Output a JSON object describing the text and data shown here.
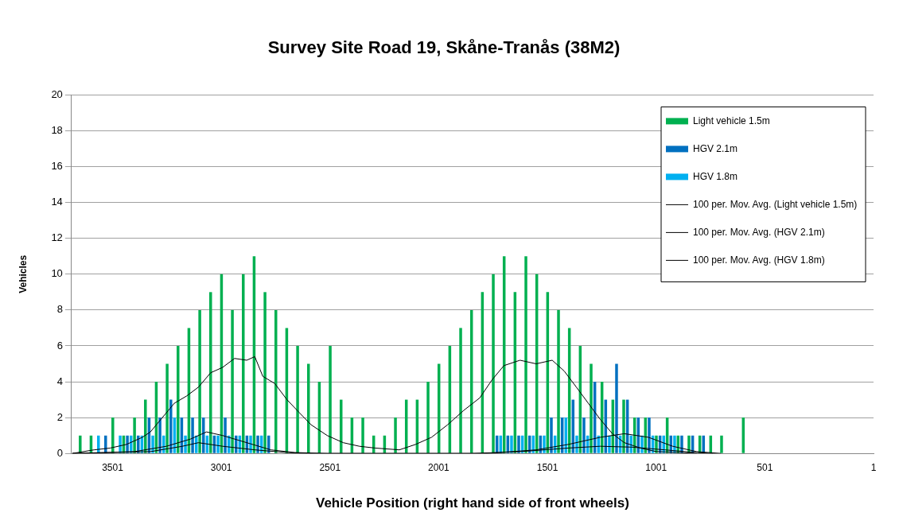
{
  "chart_data": {
    "type": "bar",
    "title": "Survey Site Road 19, Skåne-Tranås (38M2)",
    "xlabel": "Vehicle Position (right hand side of front wheels)",
    "ylabel": "Vehicles",
    "x": [
      3650,
      3600,
      3550,
      3500,
      3450,
      3400,
      3350,
      3300,
      3250,
      3200,
      3150,
      3100,
      3050,
      3000,
      2950,
      2900,
      2850,
      2800,
      2750,
      2700,
      2650,
      2600,
      2550,
      2500,
      2450,
      2400,
      2350,
      2300,
      2250,
      2200,
      2150,
      2100,
      2050,
      2000,
      1950,
      1900,
      1850,
      1800,
      1750,
      1700,
      1650,
      1600,
      1550,
      1500,
      1450,
      1400,
      1350,
      1300,
      1250,
      1200,
      1150,
      1100,
      1050,
      1000,
      950,
      900,
      850,
      800,
      750,
      700,
      650,
      600
    ],
    "series": [
      {
        "name": "Light vehicle 1.5m",
        "color": "#00b050",
        "values": [
          1,
          1,
          0,
          2,
          1,
          2,
          3,
          4,
          5,
          6,
          7,
          8,
          9,
          10,
          8,
          10,
          11,
          9,
          8,
          7,
          6,
          5,
          4,
          6,
          3,
          2,
          2,
          1,
          1,
          2,
          3,
          3,
          4,
          5,
          6,
          7,
          8,
          9,
          10,
          11,
          9,
          11,
          10,
          9,
          8,
          7,
          6,
          5,
          4,
          3,
          3,
          2,
          2,
          1,
          2,
          1,
          1,
          1,
          1,
          1,
          0,
          2
        ]
      },
      {
        "name": "HGV 2.1m",
        "color": "#0070c0",
        "x": [
          3633,
          3583,
          3533,
          3483,
          3433,
          3383,
          3333,
          3283,
          3233,
          3183,
          3133,
          3083,
          3033,
          2983,
          2933,
          2883,
          2833,
          2783,
          2733,
          2683,
          2633,
          2583,
          2533,
          2483,
          2433,
          2383,
          2333,
          2283,
          2233,
          2183,
          2133,
          2083,
          2033,
          1983,
          1933,
          1883,
          1833,
          1783,
          1733,
          1683,
          1633,
          1583,
          1533,
          1483,
          1433,
          1383,
          1333,
          1283,
          1233,
          1183,
          1133,
          1083,
          1033,
          983,
          933,
          883,
          833,
          783,
          733,
          683,
          633,
          583
        ],
        "values": [
          0,
          0,
          1,
          0,
          1,
          1,
          2,
          2,
          3,
          2,
          2,
          2,
          1,
          2,
          1,
          1,
          1,
          1,
          0,
          0,
          0,
          0,
          0,
          0,
          0,
          0,
          0,
          0,
          0,
          0,
          0,
          0,
          0,
          0,
          0,
          0,
          0,
          0,
          1,
          1,
          1,
          1,
          1,
          2,
          2,
          3,
          2,
          4,
          3,
          5,
          3,
          2,
          2,
          1,
          1,
          1,
          1,
          1,
          0,
          0,
          0,
          0
        ]
      },
      {
        "name": "HGV 1.8m",
        "color": "#00b0f0",
        "x": [
          3616,
          3566,
          3516,
          3466,
          3416,
          3366,
          3316,
          3266,
          3216,
          3166,
          3116,
          3066,
          3016,
          2966,
          2916,
          2866,
          2816,
          2766,
          2716,
          2666,
          2616,
          2566,
          2516,
          2466,
          2416,
          2366,
          2316,
          2266,
          2216,
          2166,
          2116,
          2066,
          2016,
          1966,
          1916,
          1866,
          1816,
          1766,
          1716,
          1666,
          1616,
          1566,
          1516,
          1466,
          1416,
          1366,
          1316,
          1266,
          1216,
          1166,
          1116,
          1066,
          1016,
          966,
          916,
          866,
          816,
          766,
          716,
          666,
          616,
          566
        ],
        "values": [
          0,
          1,
          0,
          1,
          1,
          1,
          1,
          1,
          2,
          1,
          1,
          1,
          1,
          1,
          1,
          1,
          1,
          0,
          0,
          0,
          0,
          0,
          0,
          0,
          0,
          0,
          0,
          0,
          0,
          0,
          0,
          0,
          0,
          0,
          0,
          0,
          0,
          0,
          1,
          1,
          1,
          1,
          1,
          1,
          2,
          1,
          1,
          1,
          1,
          1,
          1,
          1,
          1,
          1,
          1,
          0,
          0,
          0,
          0,
          0,
          0,
          0
        ]
      },
      {
        "name": "100 per. Mov. Avg. (Light vehicle 1.5m)",
        "type": "line",
        "color": "#000000",
        "x": [
          3686,
          3586,
          3512,
          3438,
          3364,
          3327,
          3272,
          3217,
          3161,
          3106,
          3050,
          2995,
          2940,
          2884,
          2847,
          2810,
          2755,
          2699,
          2644,
          2588,
          2514,
          2440,
          2366,
          2293,
          2182,
          2108,
          2034,
          1960,
          1886,
          1812,
          1756,
          1701,
          1627,
          1553,
          1479,
          1424,
          1368,
          1313,
          1258,
          1202,
          1147,
          1073,
          999,
          888,
          814
        ],
        "values": [
          0,
          0.2,
          0.3,
          0.5,
          0.9,
          1.2,
          2,
          2.8,
          3.2,
          3.7,
          4.5,
          4.8,
          5.3,
          5.2,
          5.4,
          4.3,
          3.9,
          3,
          2.3,
          1.6,
          1,
          0.6,
          0.4,
          0.3,
          0.2,
          0.5,
          0.9,
          1.6,
          2.4,
          3.1,
          4.1,
          4.9,
          5.2,
          5,
          5.2,
          4.6,
          3.7,
          2.8,
          1.9,
          1.1,
          0.6,
          0.3,
          0.1,
          0.05,
          0
        ]
      },
      {
        "name": "100 per. Mov. Avg. (HGV 2.1m)",
        "type": "line",
        "color": "#000000",
        "x": [
          3686,
          3401,
          3253,
          3143,
          3069,
          2995,
          2884,
          2773,
          2662,
          2514,
          1775,
          1553,
          1406,
          1258,
          1147,
          1036,
          925,
          814,
          703
        ],
        "values": [
          0,
          0.1,
          0.4,
          0.8,
          1.2,
          1,
          0.6,
          0.2,
          0.05,
          0,
          0,
          0.2,
          0.5,
          0.9,
          1.1,
          0.9,
          0.4,
          0.1,
          0
        ]
      },
      {
        "name": "100 per. Mov. Avg. (HGV 1.8m)",
        "type": "line",
        "color": "#000000",
        "x": [
          3686,
          3327,
          3180,
          3106,
          2995,
          2847,
          2699,
          2588,
          1849,
          1627,
          1406,
          1258,
          1110,
          962,
          814,
          740
        ],
        "values": [
          0,
          0.1,
          0.4,
          0.6,
          0.4,
          0.2,
          0.05,
          0,
          0,
          0.1,
          0.3,
          0.4,
          0.35,
          0.2,
          0.05,
          0
        ]
      }
    ],
    "xlim": [
      3690,
      1
    ],
    "xticks": [
      3501,
      3001,
      2501,
      2001,
      1501,
      1001,
      501,
      1
    ],
    "ylim": [
      0,
      20
    ],
    "yticks": [
      0,
      2,
      4,
      6,
      8,
      10,
      12,
      14,
      16,
      18,
      20
    ],
    "grid": "y",
    "legend": "top right",
    "marker": "none"
  }
}
